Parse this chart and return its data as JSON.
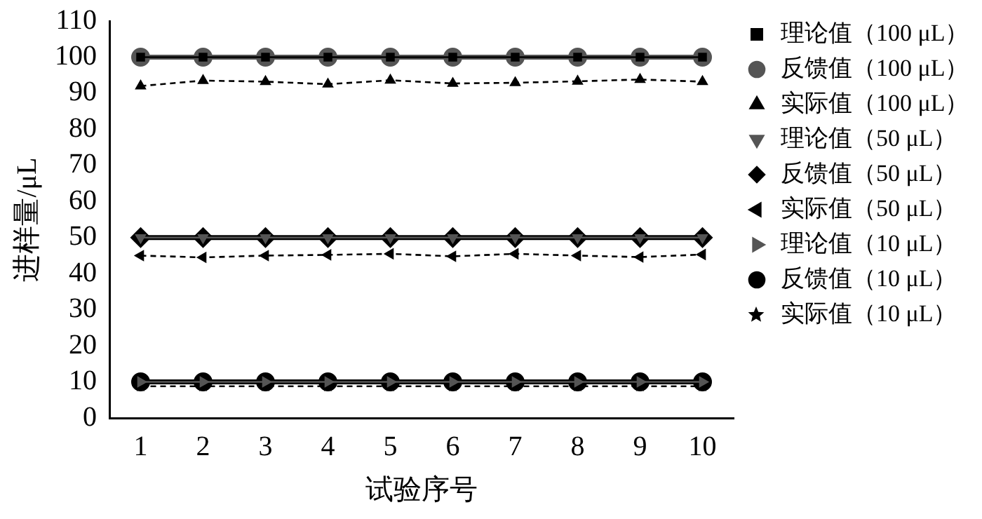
{
  "chart_data": {
    "type": "line",
    "xlabel": "试验序号",
    "ylabel": "进样量/μL",
    "categories": [
      "1",
      "2",
      "3",
      "4",
      "5",
      "6",
      "7",
      "8",
      "9",
      "10"
    ],
    "ylim": [
      0,
      110
    ],
    "yticks": [
      0,
      10,
      20,
      30,
      40,
      50,
      60,
      70,
      80,
      90,
      100,
      110
    ],
    "grid": false,
    "legend": "right",
    "series": [
      {
        "name": "理论值（100 μL）",
        "color": "#000000",
        "marker": "square",
        "line_style": "solid",
        "values": [
          100,
          100,
          100,
          100,
          100,
          100,
          100,
          100,
          100,
          100
        ]
      },
      {
        "name": "反馈值（100 μL）",
        "color": "#555555",
        "marker": "circle",
        "line_style": "solid",
        "values": [
          100,
          100,
          100,
          100,
          100,
          100,
          100,
          100,
          100,
          100
        ]
      },
      {
        "name": "实际值（100 μL）",
        "color": "#000000",
        "marker": "triangle",
        "line_style": "dashed",
        "values": [
          92,
          93.5,
          93.2,
          92.5,
          93.6,
          92.7,
          92.9,
          93.3,
          93.8,
          93.2
        ]
      },
      {
        "name": "理论值（50 μL）",
        "color": "#555555",
        "marker": "triangle-down",
        "line_style": "solid",
        "values": [
          50,
          50,
          50,
          50,
          50,
          50,
          50,
          50,
          50,
          50
        ]
      },
      {
        "name": "反馈值（50 μL）",
        "color": "#000000",
        "marker": "diamond",
        "line_style": "solid",
        "values": [
          50,
          50,
          50,
          50,
          50,
          50,
          50,
          50,
          50,
          50
        ]
      },
      {
        "name": "实际值（50 μL）",
        "color": "#000000",
        "marker": "triangle-left",
        "line_style": "dashed",
        "values": [
          45,
          44.5,
          45,
          45.2,
          45.5,
          44.8,
          45.5,
          45,
          44.6,
          45.3
        ]
      },
      {
        "name": "理论值（10 μL）",
        "color": "#555555",
        "marker": "triangle-right",
        "line_style": "solid",
        "values": [
          10,
          10,
          10,
          10,
          10,
          10,
          10,
          10,
          10,
          10
        ]
      },
      {
        "name": "反馈值（10 μL）",
        "color": "#000000",
        "marker": "circle",
        "line_style": "solid",
        "values": [
          10,
          10,
          10,
          10,
          10,
          10,
          10,
          10,
          10,
          10
        ]
      },
      {
        "name": "实际值（10 μL）",
        "color": "#000000",
        "marker": "star",
        "line_style": "dashed",
        "values": [
          8.8,
          8.8,
          8.8,
          8.8,
          8.8,
          8.8,
          8.8,
          8.8,
          8.8,
          8.8
        ]
      }
    ]
  }
}
